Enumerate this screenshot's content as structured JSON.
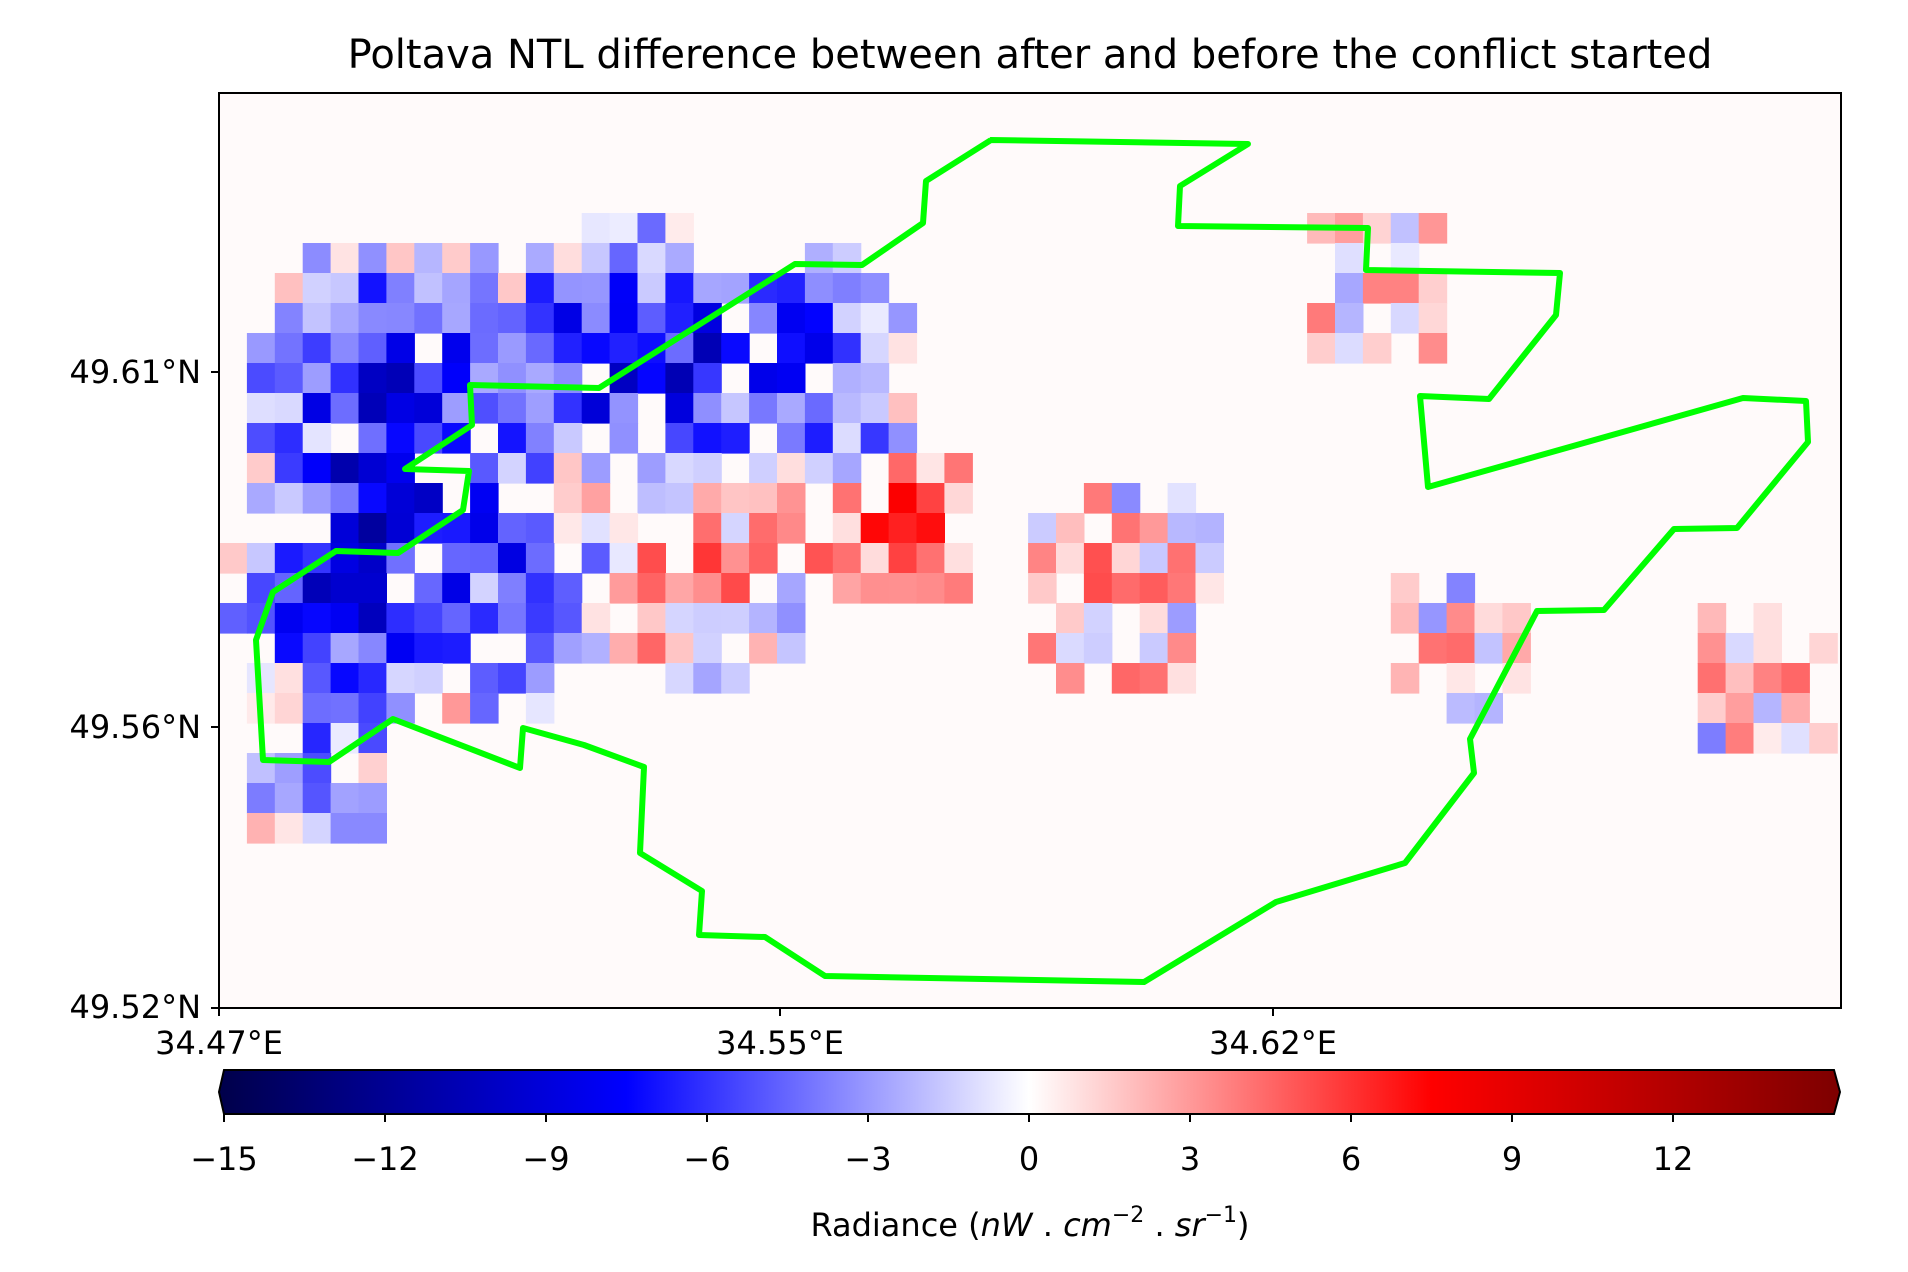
{
  "title": "Poltava NTL difference between after and before the conflict started",
  "map": {
    "x_ticks": [
      "34.47°E",
      "34.55°E",
      "34.62°E"
    ],
    "y_ticks": [
      "49.61°N",
      "49.56°N",
      "49.52°N"
    ],
    "boundary_color": "#00ff00",
    "colormap": "seismic",
    "grid": false
  },
  "colorbar": {
    "min": -15,
    "max": 15,
    "ticks": [
      -15,
      -12,
      -9,
      -6,
      -3,
      0,
      3,
      6,
      9,
      12
    ],
    "tick_labels": [
      "−15",
      "−12",
      "−9",
      "−6",
      "−3",
      "0",
      "3",
      "6",
      "9",
      "12"
    ],
    "label_main": "Radiance (",
    "label_nw": "nW",
    "label_dot1": " . ",
    "label_cm": "cm",
    "label_exp1": "−2",
    "label_dot2": " . ",
    "label_sr": "sr",
    "label_exp2": "−1",
    "label_close": ")",
    "extend": "both",
    "color_low": "#00004c",
    "color_mid": "#ffffff",
    "color_high": "#7f0000"
  }
}
